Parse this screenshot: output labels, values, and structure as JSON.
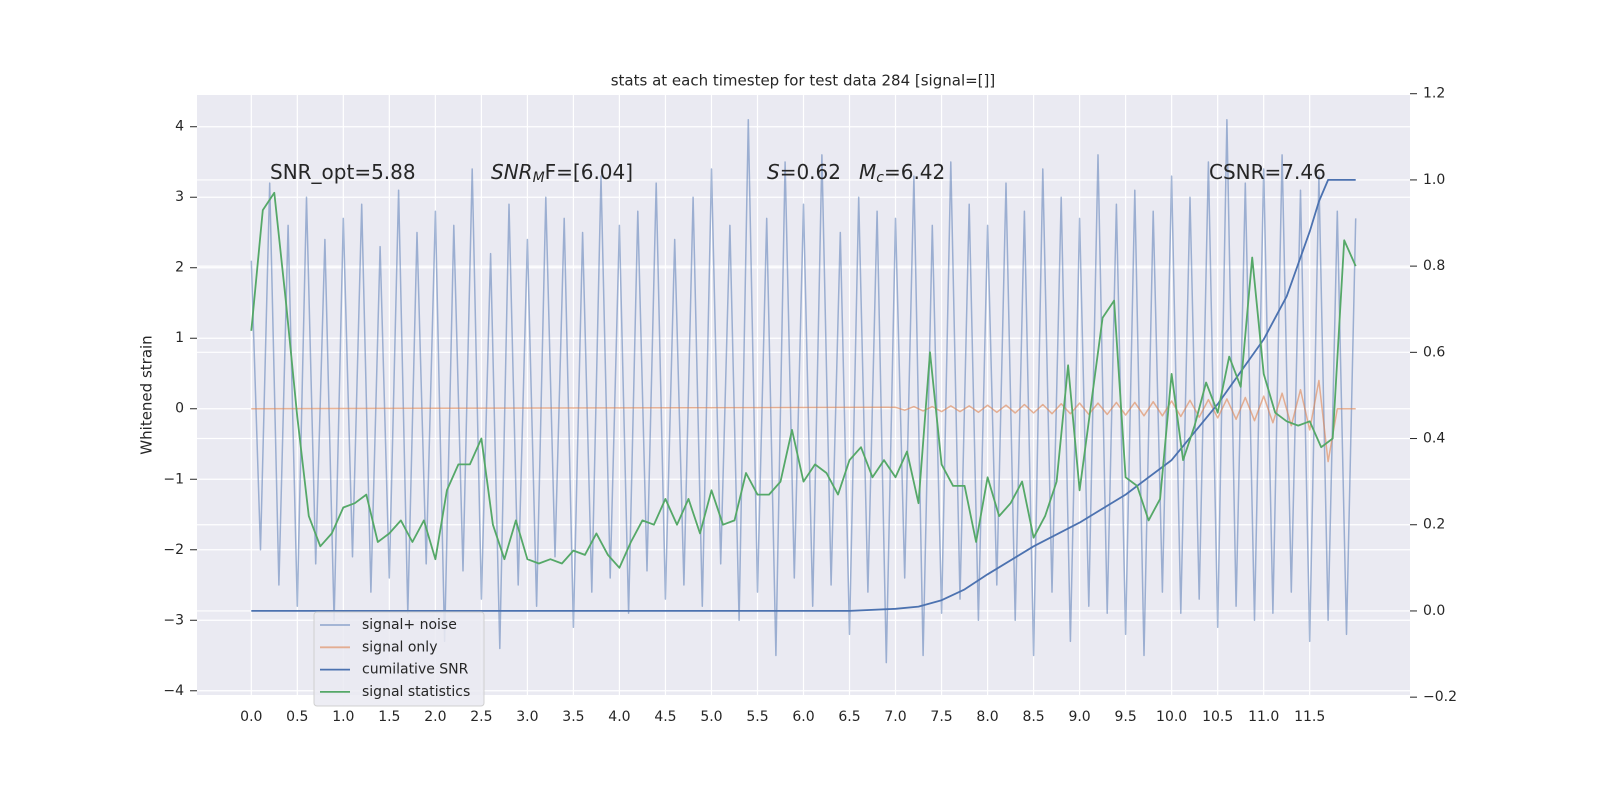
{
  "chart_data": {
    "type": "line",
    "title": "stats at each timestep for test data 284 [signal=[]]",
    "ylabel": "Whitened strain",
    "grid": true,
    "legend": "lower left",
    "xlim": [
      -0.59,
      12.59
    ],
    "xticks": [
      {
        "value": 0,
        "label": "0.0"
      },
      0.5,
      {
        "value": 1,
        "label": "1.0"
      },
      1.5,
      {
        "value": 2,
        "label": "2.0"
      },
      2.5,
      {
        "value": 3,
        "label": "3.0"
      },
      3.5,
      {
        "value": 4,
        "label": "4.0"
      },
      4.5,
      {
        "value": 5,
        "label": "5.0"
      },
      5.5,
      {
        "value": 6,
        "label": "6.0"
      },
      6.5,
      {
        "value": 7,
        "label": "7.0"
      },
      7.5,
      {
        "value": 8,
        "label": "8.0"
      },
      8.5,
      {
        "value": 9,
        "label": "9.0"
      },
      9.5,
      {
        "value": 10,
        "label": "10.0"
      },
      10.5,
      {
        "value": 11,
        "label": "11.0"
      },
      11.5
    ],
    "ylim": [
      -4.06,
      4.45
    ],
    "yticks": [
      {
        "value": -4,
        "label": "−4"
      },
      {
        "value": -3,
        "label": "−3"
      },
      {
        "value": -2,
        "label": "−2"
      },
      {
        "value": -1,
        "label": "−1"
      },
      0,
      1,
      2,
      3,
      4
    ],
    "y2lim": [
      -0.195,
      1.197
    ],
    "y2ticks": [
      {
        "value": -0.2,
        "label": "−0.2"
      },
      {
        "value": 0,
        "label": "0.0"
      },
      0.2,
      0.4,
      0.6,
      0.8,
      {
        "value": 1,
        "label": "1.0"
      },
      1.2
    ],
    "annotations": [
      {
        "text": "SNR_opt=5.88"
      },
      {
        "main": "SNR",
        "sub": "M",
        "rest": "F=[6.04]"
      },
      {
        "main": "S",
        "rest": "=0.62"
      },
      {
        "main": "M",
        "sub": "c",
        "rest": "=6.42"
      },
      {
        "text": "CSNR=7.46"
      }
    ],
    "series": [
      {
        "name": "signal+ noise",
        "color": "#4c72b0",
        "opacity": 0.5,
        "x": [
          0,
          0.1,
          0.2,
          0.3,
          0.4,
          0.5,
          0.6,
          0.7,
          0.8,
          0.9,
          1,
          1.1,
          1.2,
          1.3,
          1.4,
          1.5,
          1.6,
          1.7,
          1.8,
          1.9,
          2,
          2.1,
          2.2,
          2.3,
          2.4,
          2.5,
          2.6,
          2.7,
          2.8,
          2.9,
          3,
          3.1,
          3.2,
          3.3,
          3.4,
          3.5,
          3.6,
          3.7,
          3.8,
          3.9,
          4,
          4.1,
          4.2,
          4.3,
          4.4,
          4.5,
          4.6,
          4.7,
          4.8,
          4.9,
          5,
          5.1,
          5.2,
          5.3,
          5.4,
          5.5,
          5.6,
          5.7,
          5.8,
          5.9,
          6,
          6.1,
          6.2,
          6.3,
          6.4,
          6.5,
          6.6,
          6.7,
          6.8,
          6.9,
          7,
          7.1,
          7.2,
          7.3,
          7.4,
          7.5,
          7.6,
          7.7,
          7.8,
          7.9,
          8,
          8.1,
          8.2,
          8.3,
          8.4,
          8.5,
          8.6,
          8.7,
          8.8,
          8.9,
          9,
          9.1,
          9.2,
          9.3,
          9.4,
          9.5,
          9.6,
          9.7,
          9.8,
          9.9,
          10,
          10.1,
          10.2,
          10.3,
          10.4,
          10.5,
          10.6,
          10.7,
          10.8,
          10.9,
          11,
          11.1,
          11.2,
          11.3,
          11.4,
          11.5,
          11.6,
          11.7,
          11.8,
          11.9,
          12
        ],
        "y": [
          2.1,
          -2.0,
          3.2,
          -2.5,
          2.6,
          -2.8,
          3.0,
          -2.2,
          2.4,
          -3.0,
          2.7,
          -2.1,
          2.9,
          -2.6,
          2.3,
          -2.4,
          3.1,
          -2.9,
          2.5,
          -2.2,
          2.8,
          -3.3,
          2.6,
          -2.3,
          3.4,
          -2.7,
          2.2,
          -3.4,
          2.9,
          -2.5,
          2.4,
          -2.8,
          3.0,
          -2.1,
          2.7,
          -3.1,
          2.5,
          -2.6,
          3.3,
          -2.4,
          2.6,
          -2.9,
          2.8,
          -2.3,
          3.2,
          -2.7,
          2.4,
          -2.5,
          3.0,
          -2.8,
          3.4,
          -2.2,
          2.6,
          -3.0,
          4.1,
          -2.6,
          2.7,
          -3.5,
          3.5,
          -2.4,
          2.9,
          -2.8,
          3.6,
          -2.5,
          2.5,
          -3.2,
          3.0,
          -2.6,
          2.8,
          -3.6,
          2.7,
          -2.4,
          3.3,
          -3.5,
          2.6,
          -2.9,
          3.5,
          -2.7,
          2.9,
          -3.0,
          2.6,
          -2.5,
          3.2,
          -3.0,
          2.8,
          -3.5,
          3.4,
          -2.6,
          3.0,
          -3.3,
          2.7,
          -2.8,
          3.6,
          -2.9,
          2.9,
          -3.2,
          3.1,
          -3.5,
          2.8,
          -2.6,
          3.3,
          -2.9,
          3.0,
          -2.7,
          3.5,
          -3.1,
          4.1,
          -2.8,
          3.2,
          -3.0,
          3.4,
          -2.9,
          3.6,
          -2.6,
          3.1,
          -3.3,
          3.3,
          -3.0,
          2.8,
          -3.2,
          2.7
        ]
      },
      {
        "name": "signal only",
        "color": "#dd8452",
        "opacity": 0.6,
        "x": [
          0,
          7.0,
          7.1,
          7.2,
          7.3,
          7.4,
          7.5,
          7.6,
          7.7,
          7.8,
          7.9,
          8.0,
          8.1,
          8.2,
          8.3,
          8.4,
          8.5,
          8.6,
          8.7,
          8.8,
          8.9,
          9.0,
          9.1,
          9.2,
          9.3,
          9.4,
          9.5,
          9.6,
          9.7,
          9.8,
          9.9,
          10.0,
          10.1,
          10.2,
          10.3,
          10.4,
          10.5,
          10.6,
          10.7,
          10.8,
          10.9,
          11.0,
          11.1,
          11.2,
          11.3,
          11.4,
          11.5,
          11.6,
          11.7,
          11.8,
          11.9,
          12.0
        ],
        "y": [
          0,
          0.02,
          -0.02,
          0.03,
          -0.03,
          0.03,
          -0.04,
          0.04,
          -0.04,
          0.04,
          -0.05,
          0.05,
          -0.05,
          0.05,
          -0.06,
          0.06,
          -0.06,
          0.06,
          -0.07,
          0.07,
          -0.07,
          0.08,
          -0.08,
          0.08,
          -0.08,
          0.09,
          -0.09,
          0.09,
          -0.1,
          0.1,
          -0.1,
          0.11,
          -0.11,
          0.12,
          -0.12,
          0.13,
          -0.13,
          0.14,
          -0.15,
          0.16,
          -0.17,
          0.18,
          -0.2,
          0.22,
          -0.24,
          0.27,
          -0.3,
          0.4,
          -0.75,
          0,
          0,
          0
        ]
      },
      {
        "name": "cumilative SNR",
        "color": "#4c72b0",
        "axis": "y2",
        "x": [
          0,
          1,
          2,
          3,
          4,
          5,
          6,
          6.5,
          7,
          7.25,
          7.5,
          7.75,
          8,
          8.5,
          9,
          9.5,
          10,
          10.5,
          11,
          11.25,
          11.5,
          11.6,
          11.7,
          12
        ],
        "y": [
          0,
          0,
          0,
          0,
          0,
          0,
          0,
          0,
          0.005,
          0.01,
          0.025,
          0.05,
          0.085,
          0.15,
          0.205,
          0.27,
          0.35,
          0.48,
          0.63,
          0.73,
          0.88,
          0.95,
          1.0,
          1.0
        ]
      },
      {
        "name": "signal statistics",
        "color": "#55a868",
        "axis": "y2",
        "x": [
          0,
          0.125,
          0.25,
          0.375,
          0.5,
          0.625,
          0.75,
          0.875,
          1,
          1.125,
          1.25,
          1.375,
          1.5,
          1.625,
          1.75,
          1.875,
          2,
          2.125,
          2.25,
          2.375,
          2.5,
          2.625,
          2.75,
          2.875,
          3,
          3.125,
          3.25,
          3.375,
          3.5,
          3.625,
          3.75,
          3.875,
          4,
          4.125,
          4.25,
          4.375,
          4.5,
          4.625,
          4.75,
          4.875,
          5,
          5.125,
          5.25,
          5.375,
          5.5,
          5.625,
          5.75,
          5.875,
          6,
          6.125,
          6.25,
          6.375,
          6.5,
          6.625,
          6.75,
          6.875,
          7,
          7.125,
          7.25,
          7.375,
          7.5,
          7.625,
          7.75,
          7.875,
          8,
          8.125,
          8.25,
          8.375,
          8.5,
          8.625,
          8.75,
          8.875,
          9,
          9.125,
          9.25,
          9.375,
          9.5,
          9.625,
          9.75,
          9.875,
          10,
          10.125,
          10.25,
          10.375,
          10.5,
          10.625,
          10.75,
          10.875,
          11,
          11.125,
          11.25,
          11.375,
          11.5,
          11.625,
          11.75,
          11.875,
          12
        ],
        "y": [
          0.65,
          0.93,
          0.97,
          0.72,
          0.45,
          0.22,
          0.15,
          0.18,
          0.24,
          0.25,
          0.27,
          0.16,
          0.18,
          0.21,
          0.16,
          0.21,
          0.12,
          0.28,
          0.34,
          0.34,
          0.4,
          0.2,
          0.12,
          0.21,
          0.12,
          0.11,
          0.12,
          0.11,
          0.14,
          0.13,
          0.18,
          0.13,
          0.1,
          0.16,
          0.21,
          0.2,
          0.26,
          0.2,
          0.26,
          0.18,
          0.28,
          0.2,
          0.21,
          0.32,
          0.27,
          0.27,
          0.3,
          0.42,
          0.3,
          0.34,
          0.32,
          0.27,
          0.35,
          0.38,
          0.31,
          0.35,
          0.31,
          0.37,
          0.25,
          0.6,
          0.34,
          0.29,
          0.29,
          0.16,
          0.31,
          0.22,
          0.25,
          0.3,
          0.17,
          0.22,
          0.3,
          0.57,
          0.28,
          0.48,
          0.68,
          0.72,
          0.31,
          0.29,
          0.21,
          0.26,
          0.55,
          0.35,
          0.43,
          0.53,
          0.46,
          0.59,
          0.52,
          0.82,
          0.55,
          0.46,
          0.44,
          0.43,
          0.44,
          0.38,
          0.4,
          0.86,
          0.8
        ]
      }
    ]
  }
}
